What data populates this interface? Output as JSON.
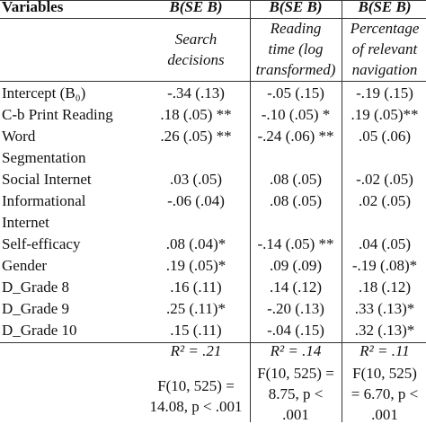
{
  "header": {
    "variables": "Variables",
    "col1": "B(SE B)",
    "col2": "B(SE B)",
    "col3": "B(SE B)"
  },
  "subheader": {
    "col1": [
      "Search",
      "decisions"
    ],
    "col2": [
      "Reading",
      "time (log",
      "transformed)"
    ],
    "col3": [
      "Percentage",
      "of relevant",
      "navigation"
    ]
  },
  "rows": [
    {
      "label": "Intercept (B₀)",
      "c1": "-.34 (.13)",
      "c2": "-.05 (.15)",
      "c3": "-.19 (.15)"
    },
    {
      "label": "C-b Print Reading",
      "c1": ".18 (.05) **",
      "c2": "-.10 (.05) *",
      "c3": ".19 (.05)**"
    },
    {
      "label": "Word",
      "c1": ".26 (.05) **",
      "c2": "-.24 (.06) **",
      "c3": ".05 (.06)"
    },
    {
      "label": "Segmentation",
      "c1": "",
      "c2": "",
      "c3": ""
    },
    {
      "label": "Social Internet",
      "c1": ".03 (.05)",
      "c2": ".08 (.05)",
      "c3": "-.02 (.05)"
    },
    {
      "label": "Informational",
      "c1": "-.06 (.04)",
      "c2": ".08 (.05)",
      "c3": ".02 (.05)"
    },
    {
      "label": "Internet",
      "c1": "",
      "c2": "",
      "c3": ""
    },
    {
      "label": "Self-efficacy",
      "c1": ".08 (.04)*",
      "c2": "-.14 (.05) **",
      "c3": ".04 (.05)"
    },
    {
      "label": "Gender",
      "c1": ".19 (.05)*",
      "c2": ".09 (.09)",
      "c3": "-.19 (.08)*"
    },
    {
      "label": "D_Grade 8",
      "c1": ".16 (.11)",
      "c2": ".14 (.12)",
      "c3": ".18 (.12)"
    },
    {
      "label": "D_Grade 9",
      "c1": ".25 (.11)*",
      "c2": "-.20 (.13)",
      "c3": ".33 (.13)*"
    },
    {
      "label": "D_Grade 10",
      "c1": ".15 (.11)",
      "c2": "-.04 (.15)",
      "c3": ".32 (.13)*"
    }
  ],
  "footer": {
    "r2": [
      "R² = .21",
      "R² = .14",
      "R² = .11"
    ],
    "col1": [
      "F(10, 525) =",
      "14.08, p < .001"
    ],
    "col2": [
      "F(10, 525) =",
      "8.75, p <",
      ".001"
    ],
    "col3": [
      "F(10, 525)",
      "= 6.70, p <",
      ".001"
    ]
  }
}
